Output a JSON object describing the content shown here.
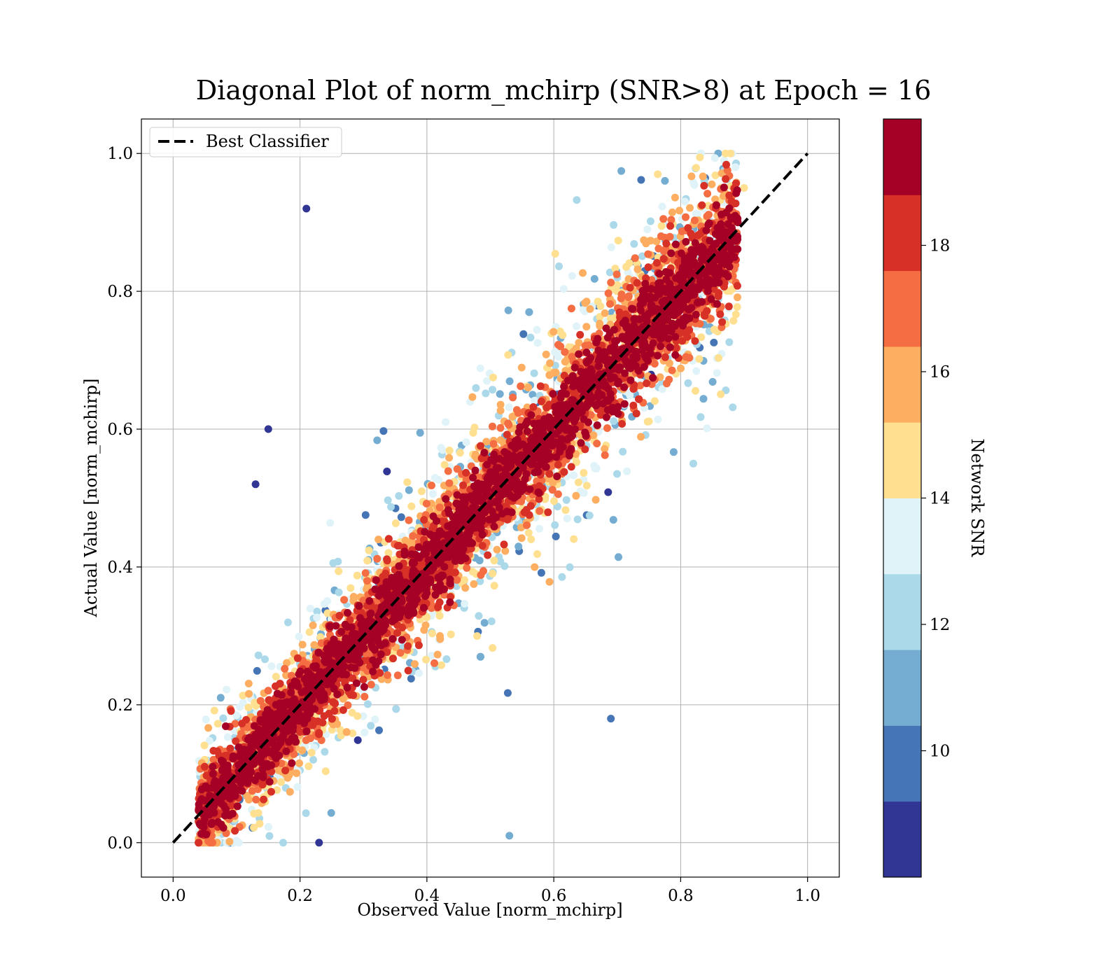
{
  "chart_data": {
    "type": "scatter",
    "title": "Diagonal Plot of norm_mchirp (SNR>8) at Epoch = 16",
    "xlabel": "Observed Value [norm_mchirp]",
    "ylabel": "Actual Value [norm_mchirp]",
    "xlim": [
      -0.05,
      1.05
    ],
    "ylim": [
      -0.05,
      1.05
    ],
    "xticks": [
      "0.0",
      "0.2",
      "0.4",
      "0.6",
      "0.8",
      "1.0"
    ],
    "yticks": [
      "0.0",
      "0.2",
      "0.4",
      "0.6",
      "0.8",
      "1.0"
    ],
    "grid": true,
    "legend": {
      "placement": "top-left",
      "entries": [
        "Best Classifier"
      ]
    },
    "reference_line": {
      "name": "Best Classifier",
      "style": "dashed",
      "color": "#000000",
      "x": [
        0.0,
        1.0
      ],
      "y": [
        0.0,
        1.0
      ]
    },
    "colorbar": {
      "label": "Network SNR",
      "range": [
        8,
        20
      ],
      "ticks": [
        "10",
        "12",
        "14",
        "16",
        "18"
      ],
      "tick_values": [
        10,
        12,
        14,
        16,
        18
      ],
      "bins": [
        {
          "from": 8,
          "to": 9.2,
          "color": "#313695"
        },
        {
          "from": 9.2,
          "to": 10.4,
          "color": "#4575b4"
        },
        {
          "from": 10.4,
          "to": 11.6,
          "color": "#74add1"
        },
        {
          "from": 11.6,
          "to": 12.8,
          "color": "#abd9e9"
        },
        {
          "from": 12.8,
          "to": 14.0,
          "color": "#e0f3f8"
        },
        {
          "from": 14.0,
          "to": 15.2,
          "color": "#fee090"
        },
        {
          "from": 15.2,
          "to": 16.4,
          "color": "#fdae61"
        },
        {
          "from": 16.4,
          "to": 17.6,
          "color": "#f46d43"
        },
        {
          "from": 17.6,
          "to": 18.8,
          "color": "#d73027"
        },
        {
          "from": 18.8,
          "to": 20,
          "color": "#a50026"
        }
      ]
    },
    "scatter_description_points": [
      {
        "x": 0.21,
        "y": 0.92,
        "snr": 9
      },
      {
        "x": 0.15,
        "y": 0.6,
        "snr": 9
      },
      {
        "x": 0.13,
        "y": 0.52,
        "snr": 9
      },
      {
        "x": 0.82,
        "y": 0.55,
        "snr": 12
      },
      {
        "x": 0.69,
        "y": 0.18,
        "snr": 10
      },
      {
        "x": 0.53,
        "y": 0.01,
        "snr": 11
      },
      {
        "x": 0.23,
        "y": 0.0,
        "snr": 9
      },
      {
        "x": 0.9,
        "y": 0.95,
        "snr": 15
      },
      {
        "x": 0.89,
        "y": 0.9,
        "snr": 19.5
      }
    ]
  }
}
